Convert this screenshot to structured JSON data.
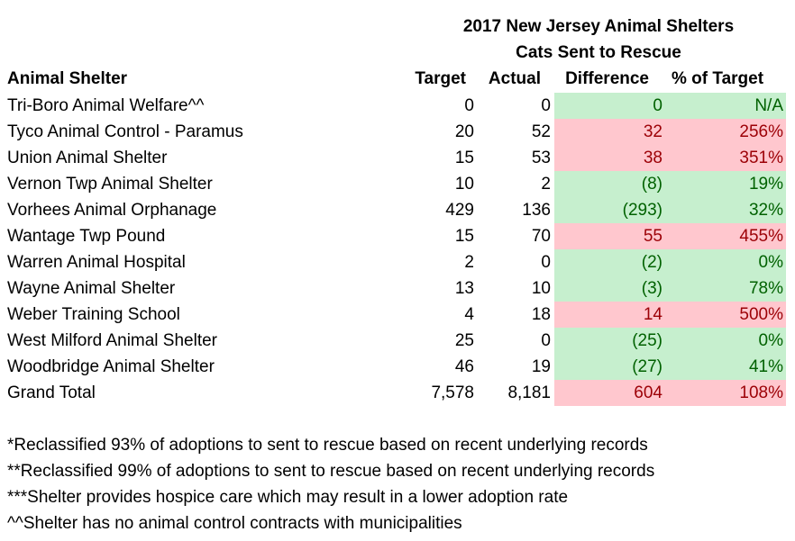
{
  "title": {
    "line1": "2017 New Jersey Animal Shelters",
    "line2": "Cats Sent to Rescue"
  },
  "colors": {
    "good_bg": "#C6EFCE",
    "good_text": "#006100",
    "bad_bg": "#FFC7CE",
    "bad_text": "#9C0006"
  },
  "table": {
    "columns": [
      "Animal Shelter",
      "Target",
      "Actual",
      "Difference",
      "% of Target"
    ],
    "rows": [
      {
        "shelter": "Tri-Boro Animal Welfare^^",
        "target": "0",
        "actual": "0",
        "difference": "0",
        "pct": "N/A",
        "status": "good"
      },
      {
        "shelter": "Tyco Animal Control - Paramus",
        "target": "20",
        "actual": "52",
        "difference": "32",
        "pct": "256%",
        "status": "bad"
      },
      {
        "shelter": "Union Animal Shelter",
        "target": "15",
        "actual": "53",
        "difference": "38",
        "pct": "351%",
        "status": "bad"
      },
      {
        "shelter": "Vernon Twp Animal Shelter",
        "target": "10",
        "actual": "2",
        "difference": "(8)",
        "pct": "19%",
        "status": "good"
      },
      {
        "shelter": "Vorhees Animal Orphanage",
        "target": "429",
        "actual": "136",
        "difference": "(293)",
        "pct": "32%",
        "status": "good"
      },
      {
        "shelter": "Wantage Twp Pound",
        "target": "15",
        "actual": "70",
        "difference": "55",
        "pct": "455%",
        "status": "bad"
      },
      {
        "shelter": "Warren Animal Hospital",
        "target": "2",
        "actual": "0",
        "difference": "(2)",
        "pct": "0%",
        "status": "good"
      },
      {
        "shelter": "Wayne Animal Shelter",
        "target": "13",
        "actual": "10",
        "difference": "(3)",
        "pct": "78%",
        "status": "good"
      },
      {
        "shelter": "Weber Training School",
        "target": "4",
        "actual": "18",
        "difference": "14",
        "pct": "500%",
        "status": "bad"
      },
      {
        "shelter": "West Milford Animal Shelter",
        "target": "25",
        "actual": "0",
        "difference": "(25)",
        "pct": "0%",
        "status": "good"
      },
      {
        "shelter": "Woodbridge Animal Shelter",
        "target": "46",
        "actual": "19",
        "difference": "(27)",
        "pct": "41%",
        "status": "good"
      },
      {
        "shelter": "Grand Total",
        "target": "7,578",
        "actual": "8,181",
        "difference": "604",
        "pct": "108%",
        "status": "bad"
      }
    ]
  },
  "footnotes": [
    "*Reclassified 93% of adoptions to sent to rescue based on recent underlying records",
    "**Reclassified 99% of adoptions to sent to rescue based on recent underlying records",
    "***Shelter provides hospice care which may result in a lower adoption rate",
    "^^Shelter has no animal control contracts with municipalities"
  ]
}
